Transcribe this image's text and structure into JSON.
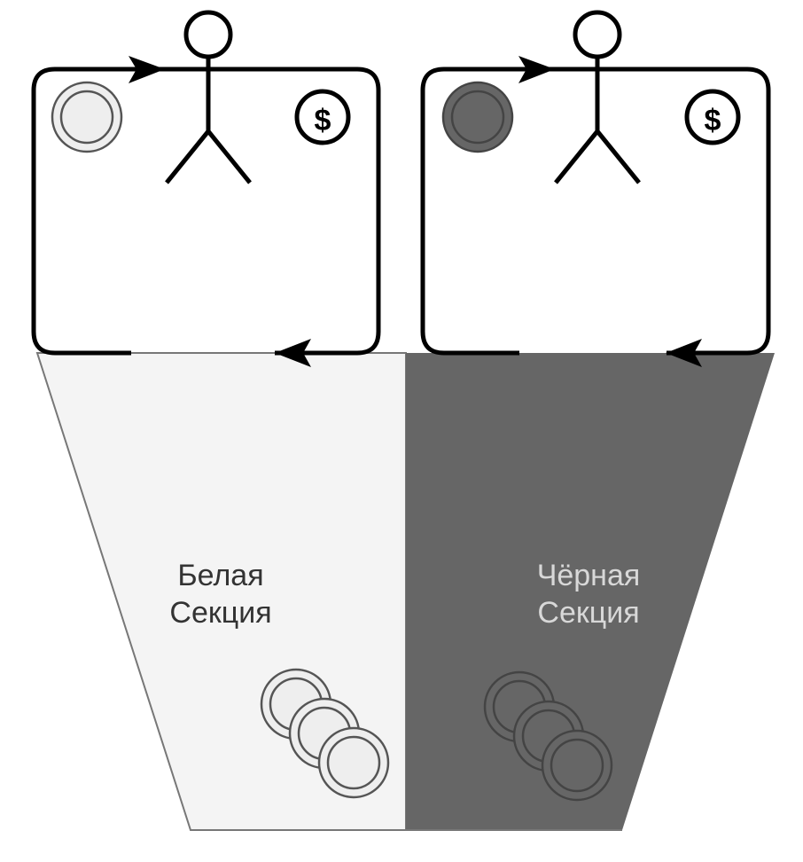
{
  "sections": {
    "white": {
      "line1": "Белая",
      "line2": "Секция",
      "fill": "#f4f4f4",
      "text_color": "#333333"
    },
    "black": {
      "line1": "Чёрная",
      "line2": "Секция",
      "fill": "#666666",
      "text_color": "#d8d8d8"
    }
  },
  "loops": {
    "left": {
      "token_fill": "#eeeeee",
      "token_stroke": "#555555",
      "icon": "dollar-icon",
      "dollar_symbol": "$"
    },
    "right": {
      "token_fill": "#666666",
      "token_stroke": "#444444",
      "icon": "dollar-icon",
      "dollar_symbol": "$"
    }
  },
  "coins": {
    "white_fill": "#eeeeee",
    "white_stroke": "#555555",
    "black_fill": "#666666",
    "black_stroke": "#444444"
  }
}
